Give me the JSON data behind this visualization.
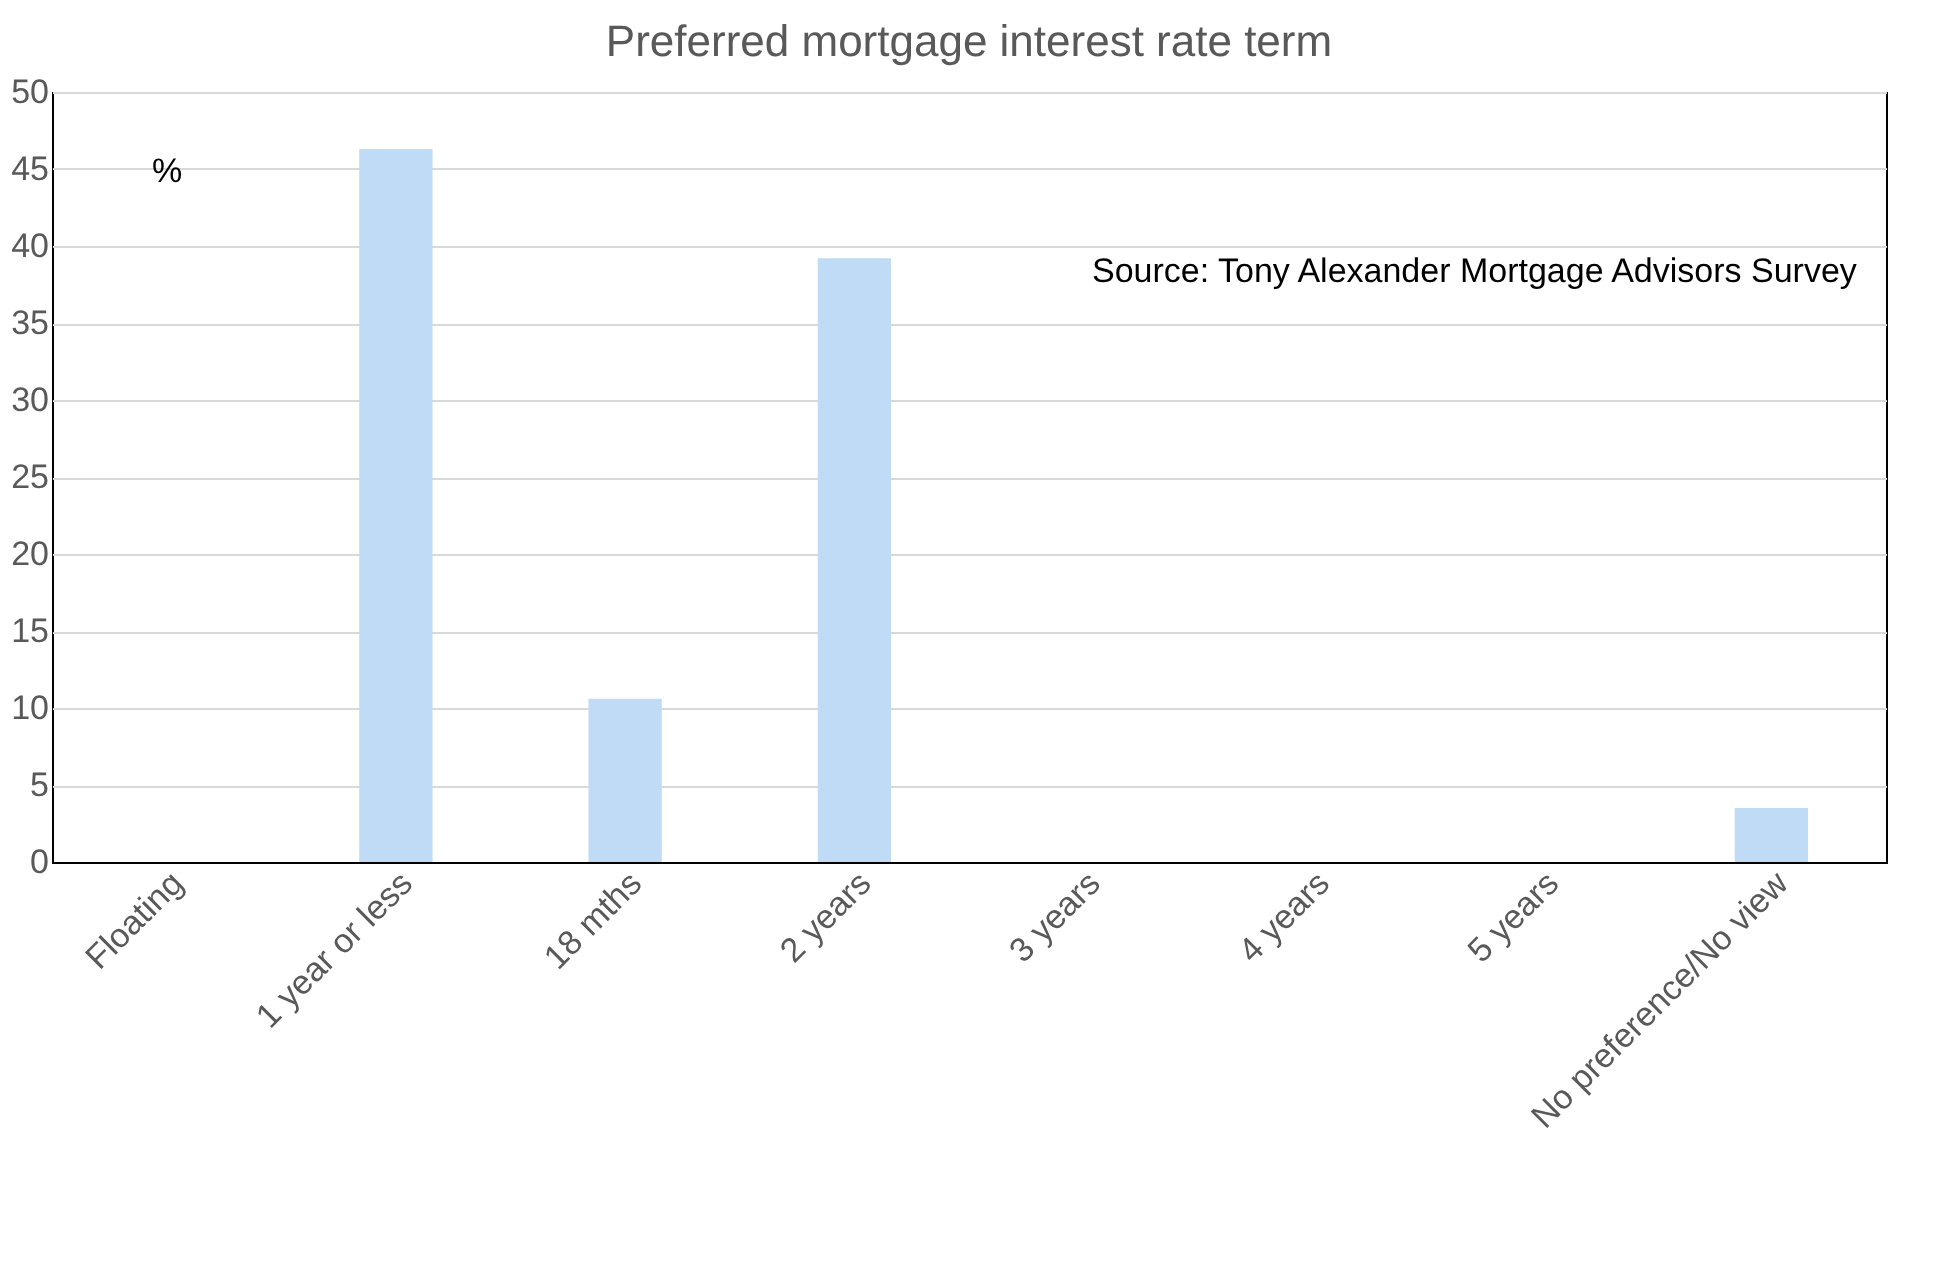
{
  "chart_data": {
    "type": "bar",
    "title": "Preferred mortgage interest rate term",
    "ylabel": "%",
    "categories": [
      "Floating",
      "1 year or less",
      "18 mths",
      "2 years",
      "3 years",
      "4 years",
      "5 years",
      "No preference/No view"
    ],
    "values": [
      0,
      46.3,
      10.6,
      39.2,
      0,
      0,
      0,
      3.5
    ],
    "color": "#c0dbf6",
    "ylim": [
      0,
      50
    ],
    "yticks": [
      0,
      5,
      10,
      15,
      20,
      25,
      30,
      35,
      40,
      45,
      50
    ],
    "grid": "y",
    "annotations": [
      "Source: Tony Alexander Mortgage Advisors Survey"
    ]
  }
}
